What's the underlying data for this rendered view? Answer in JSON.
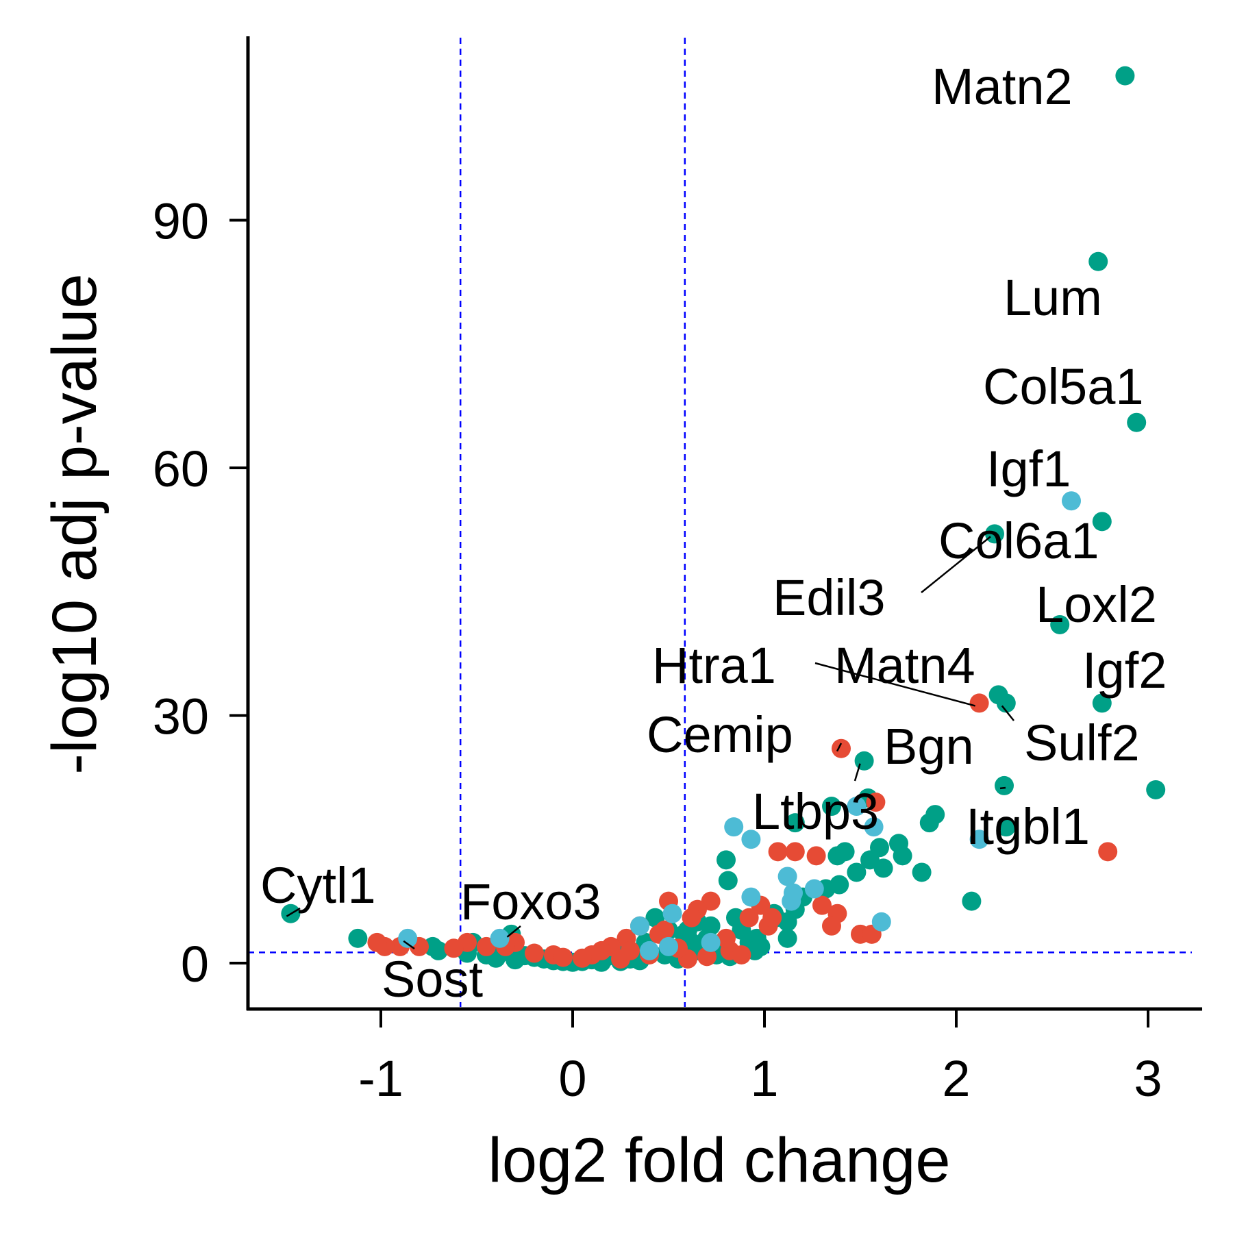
{
  "colors": {
    "group_a": "#E64B35",
    "group_b": "#4DBBD5",
    "group_c": "#00A087",
    "threshold_line": "#0000FF",
    "axis": "#000000"
  },
  "chart_data": {
    "type": "scatter",
    "title": "",
    "xlabel": "log2 fold change",
    "ylabel": "-log10 adj p-value",
    "xlim": [
      -1.7,
      3.25
    ],
    "ylim": [
      -4.5,
      113.5
    ],
    "xticks": [
      -1,
      0,
      1,
      2,
      3
    ],
    "xtick_labels": [
      "-1",
      "0",
      "1",
      "2",
      "3"
    ],
    "yticks": [
      0,
      30,
      60,
      90
    ],
    "ytick_labels": [
      "0",
      "30",
      "60",
      "90"
    ],
    "thresholds": {
      "x": [
        -0.585,
        0.585
      ],
      "y": 1.3
    },
    "legend": "none",
    "grid": false,
    "series": [
      {
        "color_key": "group_c",
        "points": [
          [
            2.88,
            107.5
          ],
          [
            2.74,
            85
          ],
          [
            2.94,
            65.5
          ],
          [
            2.76,
            53.5
          ],
          [
            2.2,
            52
          ],
          [
            2.54,
            41
          ],
          [
            2.22,
            32.5
          ],
          [
            2.26,
            31.5
          ],
          [
            2.76,
            31.5
          ],
          [
            3.04,
            21
          ],
          [
            1.52,
            24.5
          ],
          [
            2.25,
            21.5
          ],
          [
            1.54,
            20
          ],
          [
            1.35,
            19
          ],
          [
            1.16,
            17
          ],
          [
            1.86,
            17
          ],
          [
            1.89,
            18
          ],
          [
            2.26,
            16.5
          ],
          [
            1.38,
            13
          ],
          [
            1.42,
            13.5
          ],
          [
            1.55,
            12.5
          ],
          [
            1.6,
            14
          ],
          [
            1.7,
            14.5
          ],
          [
            1.72,
            13
          ],
          [
            1.62,
            11.5
          ],
          [
            1.82,
            11
          ],
          [
            1.48,
            11
          ],
          [
            2.08,
            7.5
          ],
          [
            0.8,
            12.5
          ],
          [
            0.81,
            10
          ],
          [
            1.32,
            9
          ],
          [
            1.39,
            9.5
          ],
          [
            1.2,
            8
          ],
          [
            1.05,
            6
          ],
          [
            1.12,
            5
          ],
          [
            1.16,
            6.5
          ],
          [
            0.96,
            3
          ],
          [
            0.92,
            2.5
          ],
          [
            1.12,
            3
          ],
          [
            0.95,
            1.5
          ],
          [
            0.72,
            4.5
          ],
          [
            0.78,
            2.5
          ],
          [
            0.65,
            5
          ],
          [
            0.62,
            2.5
          ],
          [
            0.6,
            4
          ],
          [
            0.85,
            5.5
          ],
          [
            0.43,
            5.5
          ],
          [
            0.48,
            1
          ],
          [
            0.38,
            2.5
          ],
          [
            0.22,
            1.5
          ],
          [
            0.3,
            0.5
          ],
          [
            0.18,
            0.8
          ],
          [
            0.1,
            0.4
          ],
          [
            0.05,
            0.2
          ],
          [
            0,
            0.1
          ],
          [
            -0.05,
            0.2
          ],
          [
            -0.1,
            0.3
          ],
          [
            -0.15,
            0.5
          ],
          [
            -0.2,
            0.7
          ],
          [
            -0.25,
            0.9
          ],
          [
            -0.32,
            3.5
          ],
          [
            -0.37,
            2.5
          ],
          [
            -0.52,
            2.5
          ],
          [
            -0.73,
            2
          ],
          [
            -1.12,
            3
          ],
          [
            -1.47,
            6
          ],
          [
            -0.7,
            1.5
          ],
          [
            -0.55,
            1.2
          ],
          [
            -0.45,
            1
          ],
          [
            -0.38,
            1.2
          ],
          [
            -0.28,
            1
          ],
          [
            0.65,
            1.5
          ],
          [
            0.75,
            1
          ],
          [
            0.82,
            0.8
          ],
          [
            0.55,
            0.5
          ],
          [
            0.35,
            0.3
          ],
          [
            0.25,
            0.2
          ],
          [
            0.15,
            0.1
          ],
          [
            -0.3,
            0.4
          ],
          [
            -0.4,
            0.6
          ],
          [
            0.5,
            4
          ],
          [
            0.58,
            3.5
          ],
          [
            0.7,
            3
          ],
          [
            0.88,
            4
          ],
          [
            0.98,
            2
          ],
          [
            1.06,
            5.5
          ]
        ]
      },
      {
        "color_key": "group_a",
        "points": [
          [
            2.12,
            31.5
          ],
          [
            2.79,
            13.5
          ],
          [
            1.4,
            26
          ],
          [
            1.58,
            19.5
          ],
          [
            1.07,
            13.5
          ],
          [
            1.16,
            13.5
          ],
          [
            1.27,
            13
          ],
          [
            1.3,
            7
          ],
          [
            1.38,
            6
          ],
          [
            1.35,
            4.5
          ],
          [
            1.5,
            3.5
          ],
          [
            1.56,
            3.5
          ],
          [
            0.98,
            7
          ],
          [
            0.92,
            5.5
          ],
          [
            1.02,
            4.5
          ],
          [
            1.04,
            5.5
          ],
          [
            0.72,
            7.5
          ],
          [
            0.65,
            6.5
          ],
          [
            0.5,
            7.5
          ],
          [
            0.45,
            3.5
          ],
          [
            0.48,
            4
          ],
          [
            0.35,
            4.5
          ],
          [
            0.28,
            3
          ],
          [
            0.2,
            2
          ],
          [
            0.15,
            1.5
          ],
          [
            0.25,
            0.5
          ],
          [
            0.4,
            1
          ],
          [
            0.6,
            0.5
          ],
          [
            0.7,
            0.8
          ],
          [
            0.82,
            1.5
          ],
          [
            0.88,
            1
          ],
          [
            -0.3,
            2.5
          ],
          [
            -0.35,
            2
          ],
          [
            -0.45,
            2
          ],
          [
            -0.55,
            2.5
          ],
          [
            -0.62,
            1.8
          ],
          [
            -0.8,
            2
          ],
          [
            -0.9,
            2
          ],
          [
            -0.98,
            2
          ],
          [
            -1.02,
            2.5
          ],
          [
            -0.2,
            1.2
          ],
          [
            -0.1,
            1
          ],
          [
            0.1,
            1
          ],
          [
            0.05,
            0.6
          ],
          [
            -0.05,
            0.7
          ],
          [
            0.3,
            1.5
          ],
          [
            0.55,
            1.8
          ],
          [
            0.62,
            5.5
          ],
          [
            0.8,
            3
          ]
        ]
      },
      {
        "color_key": "group_b",
        "points": [
          [
            2.6,
            56
          ],
          [
            2.12,
            15
          ],
          [
            1.57,
            16.5
          ],
          [
            0.84,
            16.5
          ],
          [
            0.93,
            15
          ],
          [
            1.48,
            19
          ],
          [
            1.61,
            5
          ],
          [
            0.93,
            8
          ],
          [
            1.12,
            10.5
          ],
          [
            1.26,
            9
          ],
          [
            1.14,
            7.5
          ],
          [
            1.15,
            8.5
          ],
          [
            0.52,
            6
          ],
          [
            0.35,
            4.5
          ],
          [
            0.4,
            1.5
          ],
          [
            -0.38,
            3
          ],
          [
            -0.86,
            3
          ],
          [
            0.72,
            2.5
          ],
          [
            0.5,
            2
          ]
        ]
      }
    ],
    "labels": [
      {
        "gene": "Matn2",
        "x": 2.88,
        "y": 107.5
      },
      {
        "gene": "Lum",
        "x": 2.74,
        "y": 85
      },
      {
        "gene": "Col5a1",
        "x": 2.94,
        "y": 65.5
      },
      {
        "gene": "Igf1",
        "x": 2.6,
        "y": 56
      },
      {
        "gene": "Col6a1",
        "x": 2.2,
        "y": 52
      },
      {
        "gene": "Edil3",
        "x": 2.2,
        "y": 52
      },
      {
        "gene": "Loxl2",
        "x": 2.54,
        "y": 41
      },
      {
        "gene": "Htra1",
        "x": 2.12,
        "y": 31.5
      },
      {
        "gene": "Matn4",
        "x": 2.22,
        "y": 32.5
      },
      {
        "gene": "Igf2",
        "x": 2.76,
        "y": 31.5
      },
      {
        "gene": "Sulf2",
        "x": 2.26,
        "y": 31.5
      },
      {
        "gene": "Cemip",
        "x": 1.4,
        "y": 26
      },
      {
        "gene": "Bgn",
        "x": 1.52,
        "y": 24.5
      },
      {
        "gene": "Ltbp3",
        "x": 1.58,
        "y": 19.5
      },
      {
        "gene": "Itgbl1",
        "x": 2.25,
        "y": 21.5
      },
      {
        "gene": "Cytl1",
        "x": -1.47,
        "y": 6
      },
      {
        "gene": "Foxo3",
        "x": -0.32,
        "y": 3.5
      },
      {
        "gene": "Sost",
        "x": -0.86,
        "y": 3
      }
    ]
  }
}
